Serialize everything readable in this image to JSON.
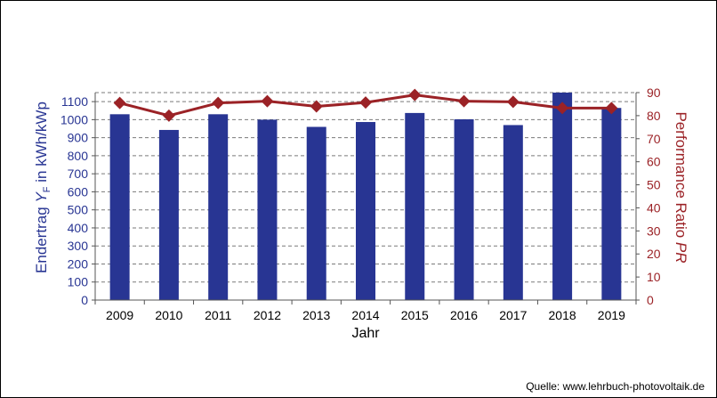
{
  "chart_data": {
    "type": "bar",
    "categories": [
      "2009",
      "2010",
      "2011",
      "2012",
      "2013",
      "2014",
      "2015",
      "2016",
      "2017",
      "2018",
      "2019"
    ],
    "series": [
      {
        "name": "Endertrag",
        "axis": "left",
        "kind": "bar",
        "color": "#283593",
        "values": [
          1030,
          943,
          1030,
          1000,
          960,
          987,
          1037,
          1002,
          970,
          1160,
          1065
        ]
      },
      {
        "name": "Performance Ratio",
        "axis": "right",
        "kind": "line",
        "color": "#9b2226",
        "values": [
          85.5,
          80,
          85.5,
          86.3,
          84,
          85.7,
          89,
          86.3,
          86,
          83.3,
          83.3
        ]
      }
    ],
    "xlabel": "Jahr",
    "ylabel_left_parts": [
      "Endertrag ",
      "Y",
      "F",
      " in kWh/kWp"
    ],
    "ylabel_right_parts": [
      "Performance Ratio ",
      "PR"
    ],
    "y_left_ticks": [
      "0",
      "100",
      "200",
      "300",
      "400",
      "500",
      "600",
      "700",
      "800",
      "900",
      "1000",
      "1100"
    ],
    "y_right_ticks": [
      "0",
      "10",
      "20",
      "30",
      "40",
      "50",
      "60",
      "70",
      "80",
      "90"
    ],
    "ylim_left": [
      0,
      1150
    ],
    "ylim_right": [
      0,
      90
    ],
    "grid": true,
    "left_axis_color": "#283593",
    "right_axis_color": "#9b2226"
  },
  "source_text": "Quelle: www.lehrbuch-photovoltaik.de"
}
